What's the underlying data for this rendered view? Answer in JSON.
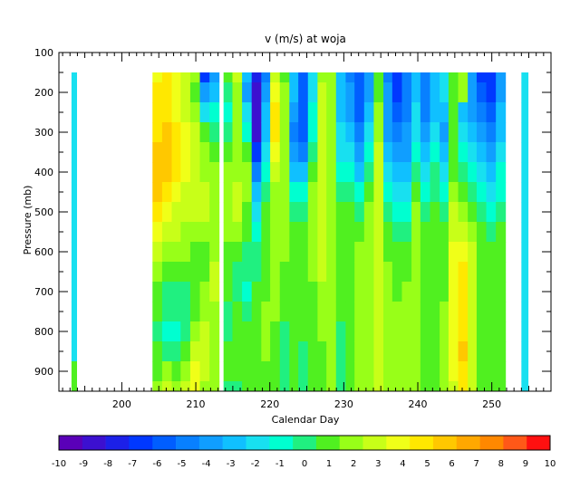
{
  "chart_data": {
    "type": "heatmap",
    "title": "v (m/s) at woja",
    "xlabel": "Calendar Day",
    "ylabel": "Pressure (mb)",
    "xlim": [
      191.5,
      258
    ],
    "ylim": [
      950,
      100
    ],
    "x_ticks": [
      200,
      210,
      220,
      230,
      240,
      250
    ],
    "y_ticks": [
      100,
      200,
      300,
      400,
      500,
      600,
      700,
      800,
      900
    ],
    "pressure_levels": [
      150,
      200,
      250,
      300,
      350,
      400,
      450,
      500,
      550,
      600,
      650,
      700,
      750,
      800,
      850,
      900,
      950
    ],
    "columns": [
      {
        "day": 193.5,
        "values": [
          -2,
          -2,
          -2,
          -2,
          -2,
          -2,
          -2,
          -2,
          -2,
          -2,
          -2,
          -2,
          -2,
          -2,
          -2,
          1,
          1
        ]
      },
      {
        "day": 204.8,
        "values": [
          4,
          5,
          5,
          5,
          6,
          6,
          6,
          5,
          4,
          3,
          2,
          1,
          1,
          0,
          1,
          1,
          2
        ]
      },
      {
        "day": 206.1,
        "values": [
          5,
          5,
          5,
          6,
          6,
          6,
          5,
          4,
          3,
          2,
          1,
          0,
          0,
          -1,
          0,
          2,
          3
        ]
      },
      {
        "day": 207.4,
        "values": [
          4,
          4,
          4,
          5,
          5,
          5,
          4,
          3,
          3,
          2,
          1,
          0,
          0,
          -1,
          0,
          1,
          2
        ]
      },
      {
        "day": 208.6,
        "values": [
          3,
          3,
          3,
          4,
          4,
          4,
          3,
          3,
          2,
          2,
          1,
          0,
          0,
          0,
          1,
          2,
          3
        ]
      },
      {
        "day": 209.9,
        "values": [
          2,
          1,
          2,
          3,
          3,
          3,
          3,
          3,
          2,
          1,
          1,
          1,
          1,
          2,
          3,
          4,
          4
        ]
      },
      {
        "day": 211.2,
        "values": [
          -7,
          -4,
          -2,
          1,
          2,
          2,
          3,
          3,
          2,
          1,
          1,
          2,
          2,
          3,
          3,
          3,
          2
        ]
      },
      {
        "day": 212.5,
        "values": [
          -4,
          -3,
          -1,
          0,
          1,
          2,
          2,
          2,
          2,
          2,
          3,
          3,
          2,
          2,
          2,
          2,
          2
        ]
      },
      {
        "day": 214.4,
        "values": [
          1,
          0,
          -1,
          0,
          1,
          2,
          2,
          2,
          2,
          1,
          1,
          1,
          0,
          0,
          1,
          1,
          0
        ]
      },
      {
        "day": 215.6,
        "values": [
          3,
          2,
          2,
          2,
          2,
          2,
          3,
          3,
          2,
          1,
          0,
          0,
          1,
          1,
          1,
          1,
          0
        ]
      },
      {
        "day": 216.9,
        "values": [
          -3,
          -4,
          -2,
          -1,
          1,
          2,
          2,
          1,
          1,
          0,
          0,
          -1,
          0,
          1,
          1,
          1,
          1
        ]
      },
      {
        "day": 218.2,
        "values": [
          -8,
          -9,
          -9,
          -9,
          -7,
          -5,
          -3,
          -2,
          -1,
          0,
          0,
          1,
          1,
          1,
          1,
          1,
          1
        ]
      },
      {
        "day": 219.5,
        "values": [
          -5,
          -4,
          -3,
          -3,
          -2,
          -1,
          0,
          1,
          1,
          1,
          1,
          1,
          2,
          2,
          2,
          1,
          1
        ]
      },
      {
        "day": 220.7,
        "values": [
          3,
          4,
          5,
          5,
          4,
          3,
          2,
          2,
          2,
          2,
          2,
          2,
          2,
          1,
          1,
          1,
          1
        ]
      },
      {
        "day": 222.0,
        "values": [
          1,
          2,
          2,
          2,
          2,
          2,
          2,
          2,
          2,
          2,
          1,
          1,
          1,
          0,
          0,
          0,
          0
        ]
      },
      {
        "day": 223.3,
        "values": [
          -3,
          -3,
          -4,
          -5,
          -4,
          -3,
          -1,
          0,
          1,
          1,
          1,
          1,
          1,
          1,
          1,
          1,
          1
        ]
      },
      {
        "day": 224.5,
        "values": [
          -6,
          -6,
          -6,
          -6,
          -5,
          -3,
          -1,
          0,
          1,
          1,
          1,
          1,
          1,
          1,
          0,
          0,
          0
        ]
      },
      {
        "day": 225.8,
        "values": [
          -2,
          -2,
          -1,
          -1,
          0,
          1,
          2,
          2,
          2,
          2,
          2,
          1,
          1,
          1,
          1,
          1,
          1
        ]
      },
      {
        "day": 227.1,
        "values": [
          2,
          3,
          3,
          3,
          3,
          3,
          3,
          3,
          3,
          3,
          3,
          2,
          2,
          2,
          1,
          1,
          1
        ]
      },
      {
        "day": 228.3,
        "values": [
          2,
          2,
          2,
          2,
          2,
          2,
          2,
          2,
          2,
          2,
          2,
          2,
          2,
          2,
          2,
          2,
          2
        ]
      },
      {
        "day": 229.6,
        "values": [
          -3,
          -3,
          -3,
          -2,
          -2,
          -1,
          0,
          1,
          1,
          1,
          1,
          1,
          1,
          0,
          0,
          0,
          0
        ]
      },
      {
        "day": 230.9,
        "values": [
          -5,
          -4,
          -4,
          -3,
          -2,
          -1,
          0,
          1,
          1,
          1,
          1,
          1,
          1,
          1,
          1,
          1,
          1
        ]
      },
      {
        "day": 232.1,
        "values": [
          -6,
          -6,
          -6,
          -5,
          -4,
          -3,
          -1,
          0,
          1,
          2,
          2,
          2,
          2,
          2,
          2,
          2,
          2
        ]
      },
      {
        "day": 233.4,
        "values": [
          -4,
          -4,
          -3,
          -2,
          -1,
          0,
          1,
          2,
          2,
          2,
          2,
          2,
          2,
          2,
          2,
          2,
          2
        ]
      },
      {
        "day": 234.7,
        "values": [
          1,
          1,
          2,
          2,
          3,
          3,
          3,
          3,
          3,
          3,
          3,
          3,
          3,
          3,
          3,
          3,
          3
        ]
      },
      {
        "day": 236.0,
        "values": [
          -5,
          -4,
          -4,
          -4,
          -3,
          -2,
          -1,
          0,
          1,
          1,
          2,
          2,
          2,
          2,
          2,
          2,
          2
        ]
      },
      {
        "day": 237.2,
        "values": [
          -7,
          -7,
          -6,
          -5,
          -4,
          -3,
          -2,
          -1,
          0,
          1,
          1,
          1,
          2,
          2,
          2,
          2,
          2
        ]
      },
      {
        "day": 238.5,
        "values": [
          -5,
          -5,
          -5,
          -4,
          -4,
          -3,
          -2,
          -1,
          0,
          1,
          1,
          2,
          2,
          2,
          2,
          2,
          2
        ]
      },
      {
        "day": 239.8,
        "values": [
          -3,
          -3,
          -2,
          -2,
          -1,
          0,
          1,
          2,
          2,
          2,
          2,
          2,
          2,
          2,
          2,
          2,
          2
        ]
      },
      {
        "day": 241.0,
        "values": [
          -5,
          -5,
          -5,
          -4,
          -3,
          -2,
          -1,
          0,
          1,
          1,
          1,
          1,
          1,
          1,
          1,
          1,
          1
        ]
      },
      {
        "day": 242.3,
        "values": [
          -3,
          -3,
          -3,
          -2,
          -1,
          0,
          0,
          1,
          1,
          1,
          1,
          1,
          1,
          1,
          1,
          1,
          1
        ]
      },
      {
        "day": 243.6,
        "values": [
          -2,
          -2,
          -3,
          -4,
          -3,
          -2,
          -1,
          0,
          1,
          1,
          1,
          1,
          2,
          2,
          2,
          2,
          2
        ]
      },
      {
        "day": 244.8,
        "values": [
          1,
          1,
          1,
          1,
          1,
          1,
          2,
          3,
          3,
          4,
          4,
          4,
          4,
          4,
          4,
          4,
          3
        ]
      },
      {
        "day": 246.1,
        "values": [
          2,
          2,
          -3,
          -2,
          -1,
          0,
          1,
          2,
          3,
          4,
          5,
          5,
          5,
          5,
          6,
          5,
          5
        ]
      },
      {
        "day": 247.4,
        "values": [
          -4,
          -4,
          -4,
          -3,
          -2,
          -1,
          0,
          1,
          2,
          3,
          3,
          3,
          3,
          3,
          3,
          3,
          3
        ]
      },
      {
        "day": 248.6,
        "values": [
          -7,
          -6,
          -5,
          -4,
          -3,
          -2,
          -1,
          0,
          1,
          1,
          1,
          1,
          1,
          1,
          1,
          1,
          1
        ]
      },
      {
        "day": 249.9,
        "values": [
          -7,
          -7,
          -6,
          -5,
          -4,
          -3,
          -2,
          -1,
          0,
          1,
          1,
          1,
          1,
          1,
          1,
          1,
          1
        ]
      },
      {
        "day": 251.2,
        "values": [
          -4,
          -4,
          -3,
          -3,
          -2,
          -1,
          -1,
          0,
          1,
          1,
          1,
          1,
          1,
          1,
          1,
          1,
          1
        ]
      },
      {
        "day": 254.4,
        "values": [
          -2,
          -2,
          -2,
          -2,
          -2,
          -2,
          -2,
          -2,
          -2,
          -2,
          -2,
          -2,
          -2,
          -2,
          -2,
          -2,
          -2
        ]
      }
    ],
    "colorbar": {
      "min": -10,
      "max": 10,
      "tick_labels": [
        "-10",
        "-9",
        "-8",
        "-7",
        "-6",
        "-5",
        "-4",
        "-3",
        "-2",
        "-1",
        "0",
        "1",
        "2",
        "3",
        "4",
        "5",
        "6",
        "7",
        "8",
        "9",
        "10"
      ],
      "colors": [
        "#5a00b8",
        "#3c10d0",
        "#1c20e8",
        "#0038ff",
        "#005eff",
        "#0880ff",
        "#109eff",
        "#10c0ff",
        "#18e0f0",
        "#00ffd0",
        "#20f080",
        "#50f020",
        "#98ff18",
        "#c8ff18",
        "#f0ff18",
        "#ffe800",
        "#ffc800",
        "#ffa800",
        "#ff8800",
        "#ff5818",
        "#ff1010"
      ]
    }
  }
}
